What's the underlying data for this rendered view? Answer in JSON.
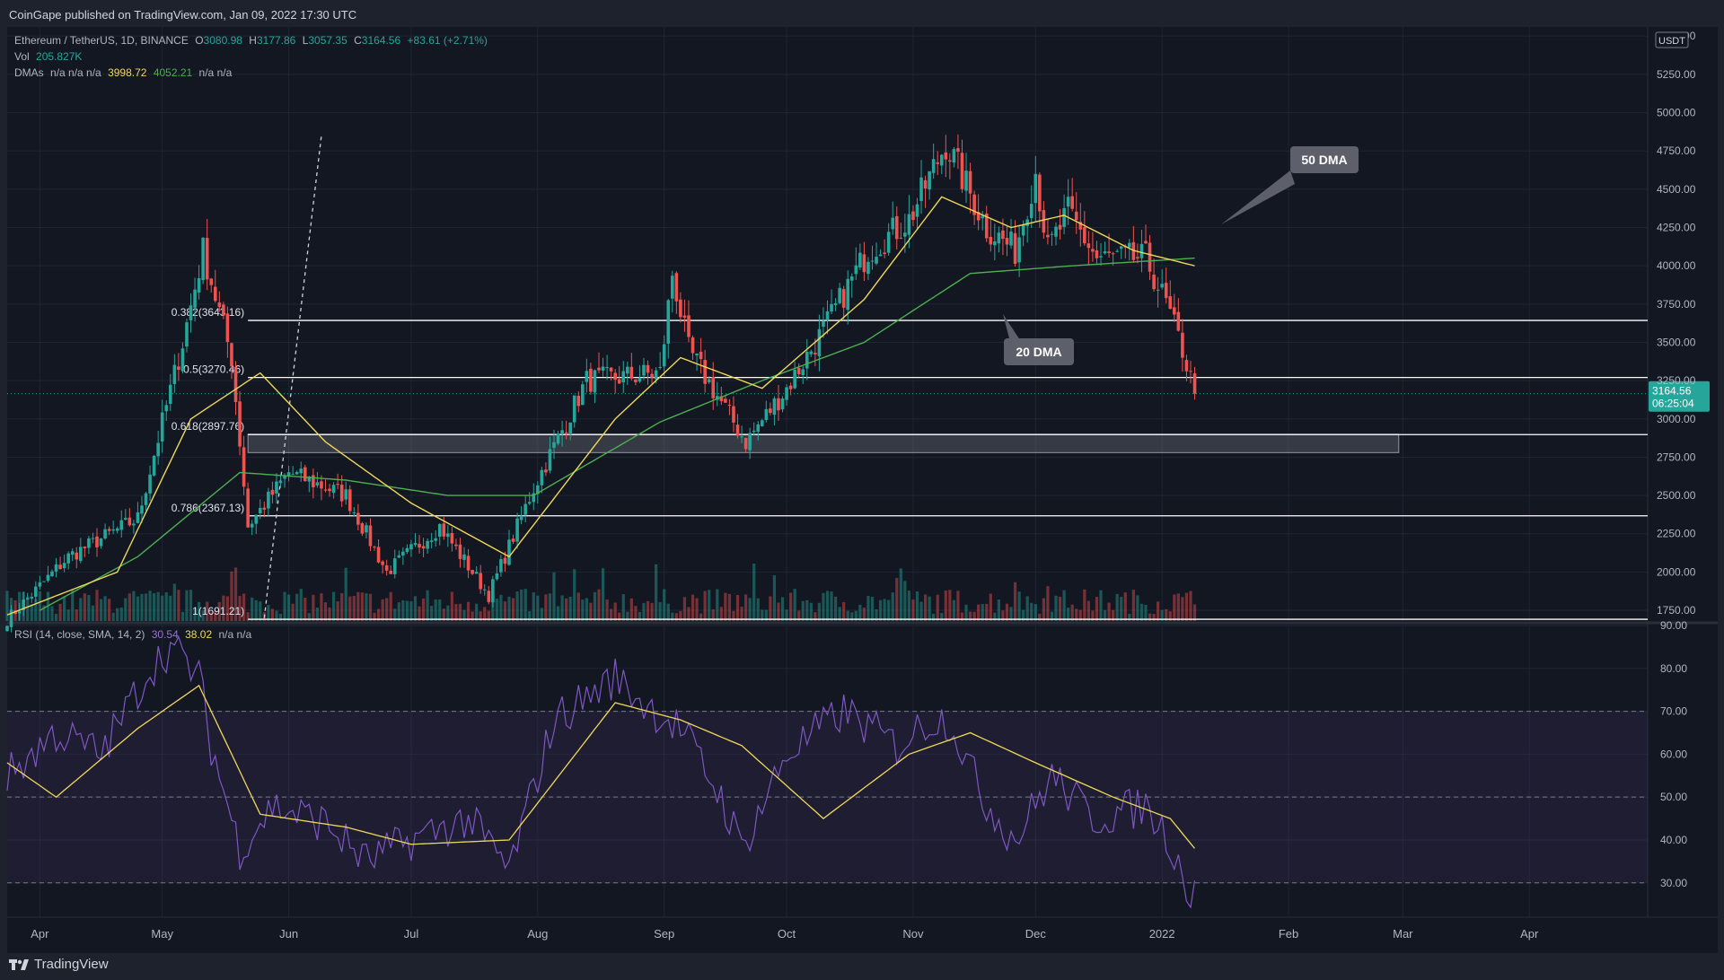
{
  "publisher": "CoinGape published on TradingView.com, Jan 09, 2022 17:30 UTC",
  "brand": "TradingView",
  "legend": {
    "symbol": "Ethereum / TetherUS, 1D, BINANCE",
    "ohlc": {
      "o_label": "O",
      "o": "3080.98",
      "h_label": "H",
      "h": "3177.86",
      "l_label": "L",
      "l": "3057.35",
      "c_label": "C",
      "c": "3164.56",
      "chg": "+83.61 (+2.71%)"
    },
    "vol_label": "Vol",
    "vol": "205.827K",
    "dma_label": "DMAs",
    "dma_na": "n/a n/a n/a",
    "dma_v1": "3998.72",
    "dma_v2": "4052.21",
    "dma_na2": "n/a n/a"
  },
  "rsi_legend": {
    "label": "RSI (14, close, SMA, 14, 2)",
    "rsi": "30.54",
    "sma": "38.02",
    "na": "n/a n/a"
  },
  "price_tag": {
    "value": "3164.56",
    "countdown": "06:25:04"
  },
  "currency_label": "USDT",
  "annotations": [
    {
      "text": "50 DMA",
      "anchor": "4050 near Jan 2022"
    },
    {
      "text": "20 DMA",
      "anchor": "3620 near Nov 2021"
    }
  ],
  "colors": {
    "bg": "#131722",
    "up": "#26a69a",
    "down": "#ef5350",
    "dma20": "#f0d85a",
    "dma50": "#4caf50",
    "rsi": "#7e57c2",
    "rsi_sma": "#f0d85a",
    "fib": "#ffffff",
    "zone": "#787b86",
    "current": "#26a69a"
  },
  "chart_data": [
    {
      "type": "candlestick",
      "title": "Ethereum / TetherUS, 1D, BINANCE",
      "xlabel": "",
      "ylabel": "",
      "x_ticks": [
        "Apr",
        "May",
        "Jun",
        "Jul",
        "Aug",
        "Sep",
        "Oct",
        "Nov",
        "Dec",
        "2022",
        "Feb",
        "Mar",
        "Apr"
      ],
      "y_ticks": [
        "1750.00",
        "2000.00",
        "2250.00",
        "2500.00",
        "2750.00",
        "3000.00",
        "3250.00",
        "3500.00",
        "3750.00",
        "4000.00",
        "4250.00",
        "4500.00",
        "4750.00",
        "5000.00",
        "5250.00",
        "5500.00"
      ],
      "ylim": [
        1680,
        5560
      ],
      "grid": true,
      "fib_levels": [
        {
          "label": "0.382(3643.16)",
          "value": 3643.16
        },
        {
          "label": "0.5(3270.46)",
          "value": 3270.46
        },
        {
          "label": "0.618(2897.76)",
          "value": 2897.76
        },
        {
          "label": "0.786(2367.13)",
          "value": 2367.13
        },
        {
          "label": "1(1691.21)",
          "value": 1691.21
        }
      ],
      "support_zone": [
        2780,
        2900
      ],
      "current_price": 3164.56,
      "close_series": {
        "dates": [
          "2021-03-24",
          "2021-04-08",
          "2021-04-25",
          "2021-05-06",
          "2021-05-11",
          "2021-05-18",
          "2021-05-22",
          "2021-06-01",
          "2021-06-15",
          "2021-06-25",
          "2021-07-08",
          "2021-07-20",
          "2021-07-31",
          "2021-08-13",
          "2021-08-31",
          "2021-09-03",
          "2021-09-07",
          "2021-09-21",
          "2021-10-01",
          "2021-10-10",
          "2021-10-21",
          "2021-10-31",
          "2021-11-09",
          "2021-11-19",
          "2021-11-26",
          "2021-12-01",
          "2021-12-04",
          "2021-12-09",
          "2021-12-16",
          "2021-12-28",
          "2022-01-02",
          "2022-01-06",
          "2022-01-09"
        ],
        "close": [
          1690,
          2100,
          2350,
          3500,
          4100,
          3400,
          2300,
          2650,
          2500,
          2000,
          2300,
          1850,
          2550,
          3250,
          3300,
          3950,
          3450,
          2850,
          3200,
          3580,
          4100,
          4300,
          4800,
          4250,
          4100,
          4620,
          4100,
          4350,
          4050,
          4050,
          3750,
          3450,
          3164.56
        ]
      },
      "dma20": {
        "dates": [
          "2021-03-24",
          "2021-04-20",
          "2021-05-08",
          "2021-05-25",
          "2021-06-10",
          "2021-07-01",
          "2021-07-25",
          "2021-08-20",
          "2021-09-05",
          "2021-09-25",
          "2021-10-20",
          "2021-11-08",
          "2021-11-25",
          "2021-12-08",
          "2021-12-25",
          "2022-01-09"
        ],
        "values": [
          1720,
          2000,
          3000,
          3300,
          2850,
          2450,
          2100,
          3000,
          3400,
          3200,
          3780,
          4450,
          4250,
          4330,
          4100,
          4000
        ]
      },
      "dma50": {
        "dates": [
          "2021-04-01",
          "2021-04-25",
          "2021-05-20",
          "2021-06-15",
          "2021-07-10",
          "2021-07-31",
          "2021-08-31",
          "2021-09-25",
          "2021-10-20",
          "2021-11-15",
          "2021-12-10",
          "2022-01-09"
        ],
        "values": [
          1750,
          2100,
          2650,
          2600,
          2500,
          2500,
          2980,
          3250,
          3500,
          3950,
          4000,
          4050
        ]
      },
      "volume_bars": "daily volume histogram (green/red)"
    },
    {
      "type": "line",
      "title": "RSI (14, close, SMA, 14, 2)",
      "xlabel": "",
      "ylabel": "",
      "y_ticks": [
        "30.00",
        "40.00",
        "50.00",
        "60.00",
        "70.00",
        "80.00",
        "90.00"
      ],
      "ylim": [
        22,
        90
      ],
      "bands": [
        30,
        50,
        70
      ],
      "series": [
        {
          "name": "RSI",
          "dates": [
            "2021-03-24",
            "2021-04-05",
            "2021-04-16",
            "2021-04-28",
            "2021-05-03",
            "2021-05-10",
            "2021-05-13",
            "2021-05-20",
            "2021-05-28",
            "2021-06-10",
            "2021-06-20",
            "2021-07-01",
            "2021-07-15",
            "2021-07-25",
            "2021-08-05",
            "2021-08-20",
            "2021-08-27",
            "2021-09-05",
            "2021-09-15",
            "2021-09-20",
            "2021-10-01",
            "2021-10-15",
            "2021-10-28",
            "2021-11-05",
            "2021-11-10",
            "2021-11-18",
            "2021-11-26",
            "2021-12-05",
            "2021-12-15",
            "2021-12-28",
            "2022-01-03",
            "2022-01-08",
            "2022-01-09"
          ],
          "values": [
            55,
            65,
            60,
            80,
            85,
            78,
            62,
            38,
            48,
            44,
            35,
            40,
            45,
            33,
            68,
            78,
            72,
            66,
            50,
            38,
            60,
            70,
            62,
            68,
            68,
            50,
            40,
            55,
            45,
            48,
            40,
            27,
            30.54
          ]
        },
        {
          "name": "RSI SMA",
          "dates": [
            "2021-03-24",
            "2021-04-05",
            "2021-04-25",
            "2021-05-10",
            "2021-05-25",
            "2021-06-15",
            "2021-07-01",
            "2021-07-25",
            "2021-08-20",
            "2021-09-05",
            "2021-09-20",
            "2021-10-10",
            "2021-10-31",
            "2021-11-15",
            "2021-12-01",
            "2021-12-20",
            "2022-01-03",
            "2022-01-09"
          ],
          "values": [
            58,
            50,
            66,
            76,
            46,
            43,
            39,
            40,
            72,
            68,
            62,
            45,
            60,
            65,
            58,
            50,
            45,
            38.02
          ]
        }
      ]
    }
  ]
}
